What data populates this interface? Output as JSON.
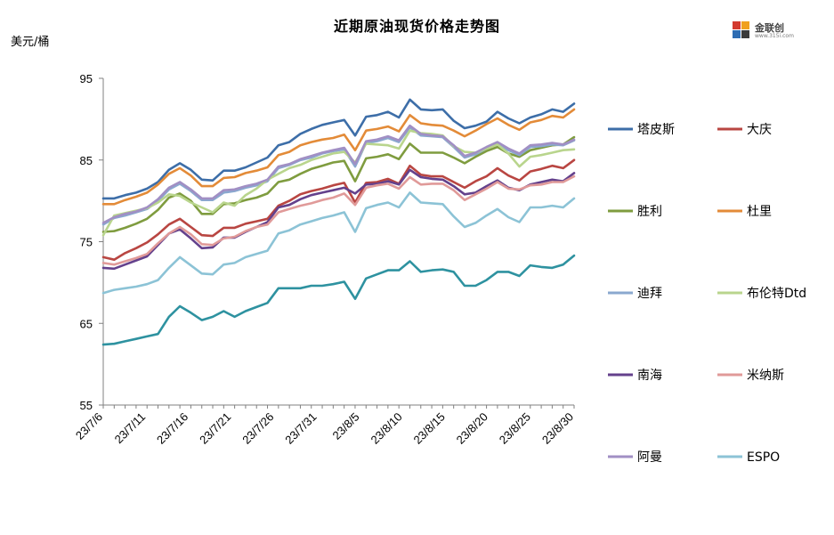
{
  "header": {
    "title": "近期原油现货价格走势图",
    "unit": "美元/桶"
  },
  "logo": {
    "brand": "金联创",
    "site": "www.315i.com"
  },
  "chart_data": {
    "type": "line",
    "ylim": [
      55,
      95
    ],
    "yticks": [
      55,
      65,
      75,
      85,
      95
    ],
    "x_tick_labels": [
      "23/7/6",
      "23/7/11",
      "23/7/16",
      "23/7/21",
      "23/7/26",
      "23/7/31",
      "23/8/5",
      "23/8/10",
      "23/8/15",
      "23/8/20",
      "23/8/25",
      "23/8/30"
    ],
    "legend_position": "right",
    "series": [
      {
        "name": "塔皮斯",
        "color": "#3d6ea8",
        "values": [
          80.3,
          80.3,
          80.7,
          81.0,
          81.5,
          82.3,
          83.8,
          84.6,
          83.8,
          82.6,
          82.5,
          83.7,
          83.7,
          84.1,
          84.7,
          85.3,
          86.8,
          87.2,
          88.2,
          88.8,
          89.3,
          89.6,
          89.9,
          88.0,
          90.3,
          90.5,
          90.9,
          90.2,
          92.4,
          91.2,
          91.1,
          91.2,
          89.8,
          88.9,
          89.2,
          89.7,
          90.9,
          90.1,
          89.5,
          90.2,
          90.6,
          91.2,
          90.9,
          91.9
        ]
      },
      {
        "name": "大庆",
        "color": "#b94642",
        "values": [
          73.1,
          72.8,
          73.6,
          74.2,
          74.9,
          75.9,
          77.1,
          77.8,
          76.8,
          75.8,
          75.7,
          76.7,
          76.7,
          77.2,
          77.5,
          77.8,
          79.4,
          80.0,
          80.8,
          81.2,
          81.5,
          81.9,
          82.2,
          79.8,
          82.2,
          82.3,
          82.7,
          82.1,
          84.3,
          83.2,
          83.0,
          83.0,
          82.3,
          81.6,
          82.4,
          83.0,
          84.0,
          83.1,
          82.5,
          83.6,
          83.9,
          84.3,
          84.0,
          85.0
        ]
      },
      {
        "name": "胜利",
        "color": "#7f9c3f",
        "values": [
          76.2,
          76.3,
          76.7,
          77.2,
          77.8,
          78.9,
          80.4,
          80.9,
          80.0,
          78.4,
          78.4,
          79.6,
          79.7,
          80.1,
          80.4,
          80.9,
          82.3,
          82.6,
          83.3,
          83.9,
          84.3,
          84.7,
          84.9,
          82.4,
          85.2,
          85.4,
          85.7,
          85.1,
          87.0,
          85.9,
          85.9,
          85.9,
          85.3,
          84.6,
          85.4,
          86.1,
          86.6,
          85.8,
          85.4,
          86.2,
          86.5,
          86.8,
          86.9,
          87.8
        ]
      },
      {
        "name": "杜里",
        "color": "#e38b38",
        "values": [
          79.6,
          79.6,
          80.1,
          80.5,
          81.0,
          82.0,
          83.3,
          84.0,
          83.1,
          81.8,
          81.8,
          82.8,
          82.9,
          83.4,
          83.7,
          84.1,
          85.6,
          86.0,
          86.8,
          87.2,
          87.5,
          87.7,
          88.1,
          86.2,
          88.6,
          88.8,
          89.1,
          88.5,
          90.5,
          89.5,
          89.3,
          89.2,
          88.6,
          87.9,
          88.6,
          89.4,
          90.1,
          89.3,
          88.7,
          89.6,
          89.9,
          90.4,
          90.2,
          91.2
        ]
      },
      {
        "name": "迪拜",
        "color": "#8aa8cf",
        "values": [
          77.1,
          77.9,
          78.2,
          78.6,
          79.0,
          80.0,
          81.4,
          82.1,
          81.2,
          80.1,
          80.1,
          81.0,
          81.2,
          81.6,
          81.9,
          82.4,
          84.0,
          84.4,
          85.0,
          85.3,
          85.8,
          86.1,
          86.3,
          84.2,
          87.1,
          87.3,
          87.7,
          87.2,
          89.0,
          88.0,
          87.9,
          87.8,
          86.6,
          85.3,
          85.7,
          86.4,
          87.0,
          86.2,
          85.6,
          86.6,
          86.7,
          86.9,
          86.8,
          87.4
        ]
      },
      {
        "name": "布伦特Dtd",
        "color": "#b9d58d",
        "values": [
          75.8,
          78.2,
          78.5,
          78.8,
          79.1,
          79.8,
          80.8,
          80.6,
          79.8,
          79.2,
          78.6,
          79.8,
          79.4,
          80.7,
          81.5,
          82.6,
          83.3,
          84.0,
          84.4,
          85.0,
          85.4,
          85.8,
          86.0,
          84.7,
          87.0,
          86.9,
          86.8,
          86.4,
          88.6,
          88.3,
          88.2,
          88.0,
          86.7,
          86.0,
          85.9,
          86.4,
          86.9,
          85.8,
          84.2,
          85.4,
          85.6,
          85.9,
          86.2,
          86.3
        ]
      },
      {
        "name": "南海",
        "color": "#64418c",
        "values": [
          71.8,
          71.7,
          72.2,
          72.7,
          73.2,
          74.6,
          76.0,
          76.5,
          75.4,
          74.2,
          74.3,
          75.5,
          75.5,
          76.2,
          76.8,
          77.4,
          79.2,
          79.5,
          80.2,
          80.7,
          81.0,
          81.3,
          81.6,
          80.9,
          82.0,
          82.1,
          82.4,
          82.0,
          83.8,
          82.9,
          82.7,
          82.6,
          81.8,
          80.8,
          81.0,
          81.8,
          82.5,
          81.6,
          81.3,
          82.0,
          82.3,
          82.6,
          82.4,
          83.4
        ]
      },
      {
        "name": "米纳斯",
        "color": "#e09a99",
        "values": [
          72.4,
          72.2,
          72.6,
          73.0,
          73.5,
          74.8,
          76.0,
          76.8,
          75.9,
          74.7,
          74.6,
          75.4,
          75.6,
          76.3,
          76.8,
          77.1,
          78.6,
          79.0,
          79.4,
          79.7,
          80.1,
          80.4,
          80.9,
          79.5,
          81.6,
          81.9,
          82.1,
          81.5,
          82.9,
          82.0,
          82.1,
          82.1,
          81.3,
          80.1,
          80.8,
          81.5,
          82.3,
          81.5,
          81.4,
          81.9,
          82.0,
          82.3,
          82.3,
          83.0
        ]
      },
      {
        "name": "阿曼",
        "color": "#a18fc4",
        "values": [
          77.3,
          78.0,
          78.4,
          78.7,
          79.2,
          80.2,
          81.6,
          82.3,
          81.4,
          80.3,
          80.3,
          81.3,
          81.4,
          81.8,
          82.1,
          82.6,
          84.2,
          84.5,
          85.1,
          85.5,
          85.9,
          86.2,
          86.5,
          84.5,
          87.3,
          87.5,
          87.9,
          87.4,
          89.2,
          88.2,
          88.0,
          87.9,
          86.8,
          85.5,
          85.9,
          86.6,
          87.2,
          86.4,
          85.8,
          86.8,
          86.9,
          87.1,
          86.9,
          87.5
        ]
      },
      {
        "name": "ESPO",
        "color": "#8cc3d6",
        "values": [
          68.7,
          69.1,
          69.3,
          69.5,
          69.8,
          70.3,
          71.8,
          73.1,
          72.1,
          71.1,
          71.0,
          72.2,
          72.4,
          73.1,
          73.5,
          73.9,
          76.0,
          76.4,
          77.1,
          77.5,
          77.9,
          78.2,
          78.6,
          76.2,
          79.1,
          79.5,
          79.8,
          79.2,
          81.0,
          79.8,
          79.7,
          79.6,
          78.1,
          76.8,
          77.3,
          78.2,
          79.0,
          78.0,
          77.4,
          79.2,
          79.2,
          79.4,
          79.2,
          80.3
        ]
      },
      {
        "name": "",
        "color": "#2e92a0",
        "values": [
          62.4,
          62.5,
          62.8,
          63.1,
          63.4,
          63.7,
          65.8,
          67.1,
          66.3,
          65.4,
          65.8,
          66.5,
          65.8,
          66.5,
          67.0,
          67.5,
          69.3,
          69.3,
          69.3,
          69.6,
          69.6,
          69.8,
          70.1,
          68.0,
          70.5,
          71.0,
          71.5,
          71.5,
          72.6,
          71.3,
          71.5,
          71.6,
          71.3,
          69.6,
          69.6,
          70.3,
          71.3,
          71.3,
          70.8,
          72.1,
          71.9,
          71.8,
          72.2,
          73.3
        ]
      }
    ]
  }
}
